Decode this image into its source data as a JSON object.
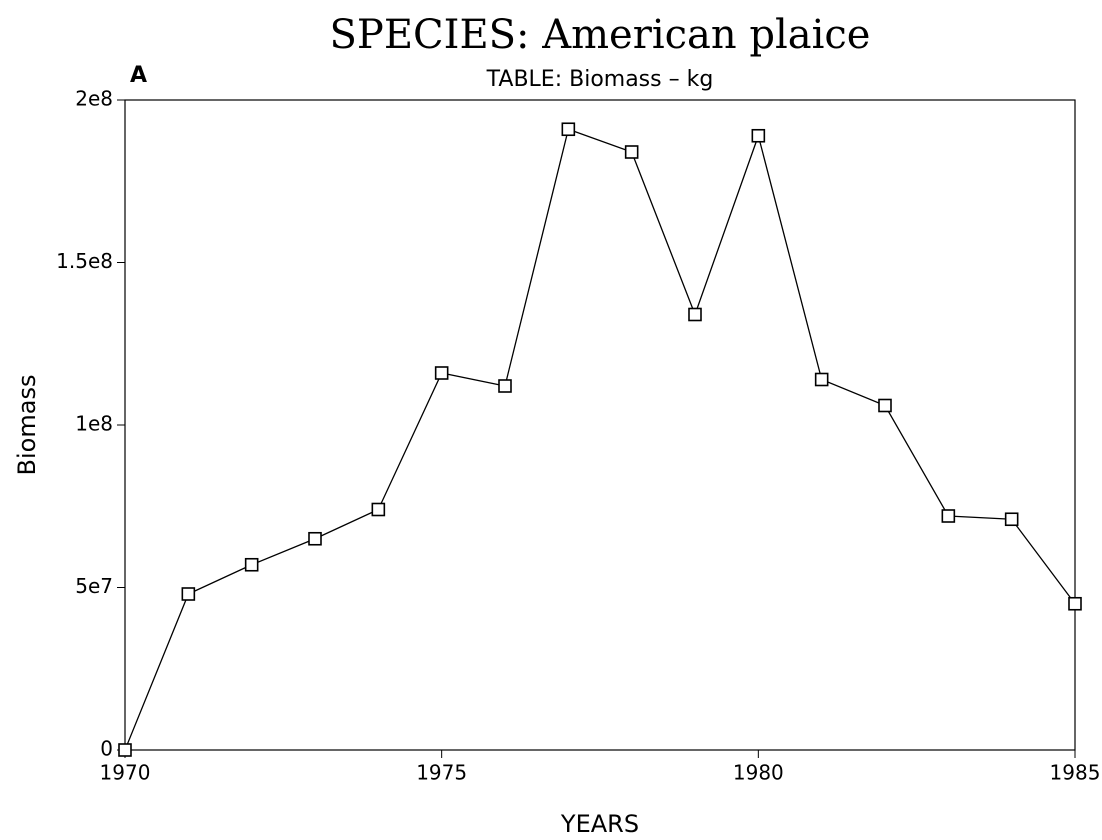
{
  "chart_data": {
    "type": "line",
    "title": "SPECIES: American plaice",
    "subtitle": "TABLE: Biomass – kg",
    "panel_label": "A",
    "x_label": "YEARS",
    "y_label": "Biomass",
    "x": [
      1970,
      1971,
      1972,
      1973,
      1974,
      1975,
      1976,
      1977,
      1978,
      1979,
      1980,
      1981,
      1982,
      1983,
      1984,
      1985
    ],
    "series": [
      {
        "name": "Biomass",
        "color": "#000000",
        "values": [
          0,
          48000000,
          57000000,
          65000000,
          74000000,
          116000000,
          112000000,
          191000000,
          184000000,
          134000000,
          189000000,
          114000000,
          106000000,
          72000000,
          71000000,
          45000000
        ]
      }
    ],
    "xlim": [
      1970,
      1985
    ],
    "xticks": [
      1970,
      1975,
      1980,
      1985
    ],
    "ylim": [
      0,
      200000000
    ],
    "yticks": [
      {
        "value": 0,
        "label": "0"
      },
      {
        "value": 50000000,
        "label": "5e7"
      },
      {
        "value": 100000000,
        "label": "1e8"
      },
      {
        "value": 150000000,
        "label": "1.5e8"
      },
      {
        "value": 200000000,
        "label": "2e8"
      }
    ],
    "grid": false,
    "marker": "square"
  }
}
